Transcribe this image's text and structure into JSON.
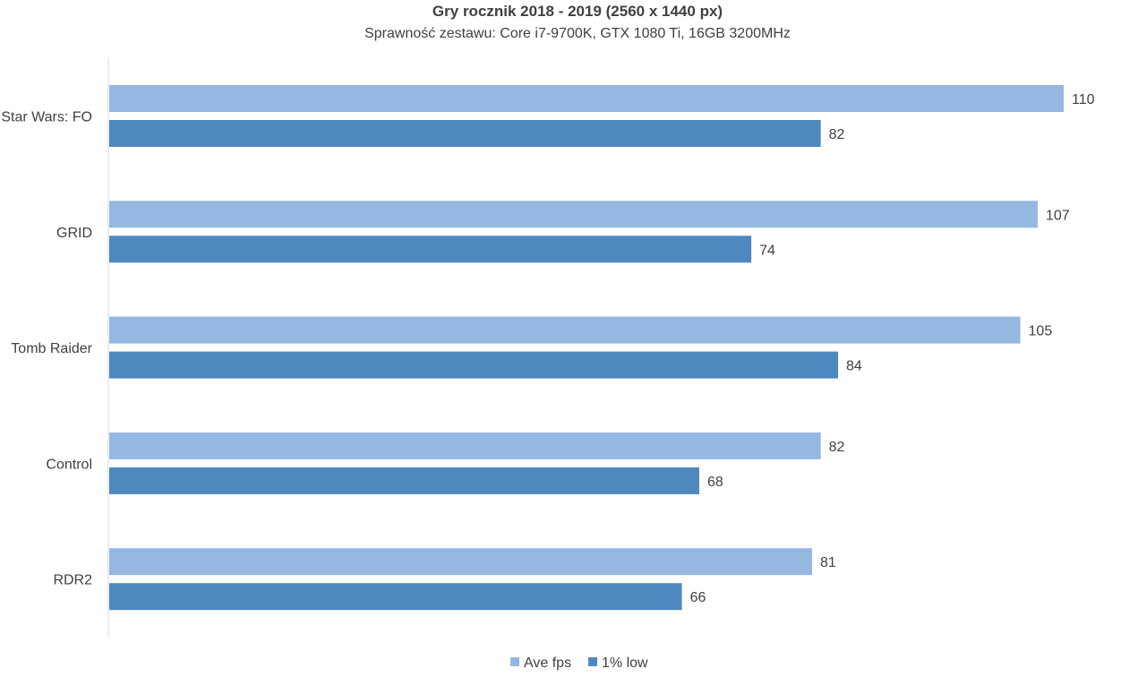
{
  "chart_data": {
    "type": "bar",
    "orientation": "horizontal",
    "title": "Gry rocznik 2018 - 2019 (2560 x 1440 px)",
    "subtitle": "Sprawność zestawu: Core i7-9700K, GTX 1080 Ti, 16GB 3200MHz",
    "categories": [
      "Star Wars: FO",
      "GRID",
      "Tomb Raider",
      "Control",
      "RDR2"
    ],
    "series": [
      {
        "name": "Ave fps",
        "values": [
          110,
          107,
          105,
          82,
          81
        ],
        "color": "#95b8e0"
      },
      {
        "name": "1% low",
        "values": [
          82,
          74,
          84,
          68,
          66
        ],
        "color": "#4f88be"
      }
    ],
    "xlim": [
      0,
      110
    ],
    "grid": false,
    "legend_position": "bottom",
    "data_labels": true
  }
}
